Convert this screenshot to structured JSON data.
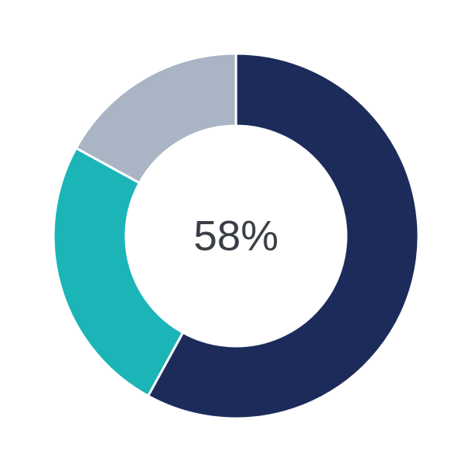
{
  "chart_data": {
    "type": "pie",
    "variant": "donut",
    "center_label": "58%",
    "slices": [
      {
        "value": 58,
        "color": "#1c2b5a"
      },
      {
        "value": 25,
        "color": "#1bb5b8"
      },
      {
        "value": 17,
        "color": "#a9b4c4"
      }
    ],
    "start_angle": "top",
    "direction": "clockwise",
    "legend": "none"
  }
}
